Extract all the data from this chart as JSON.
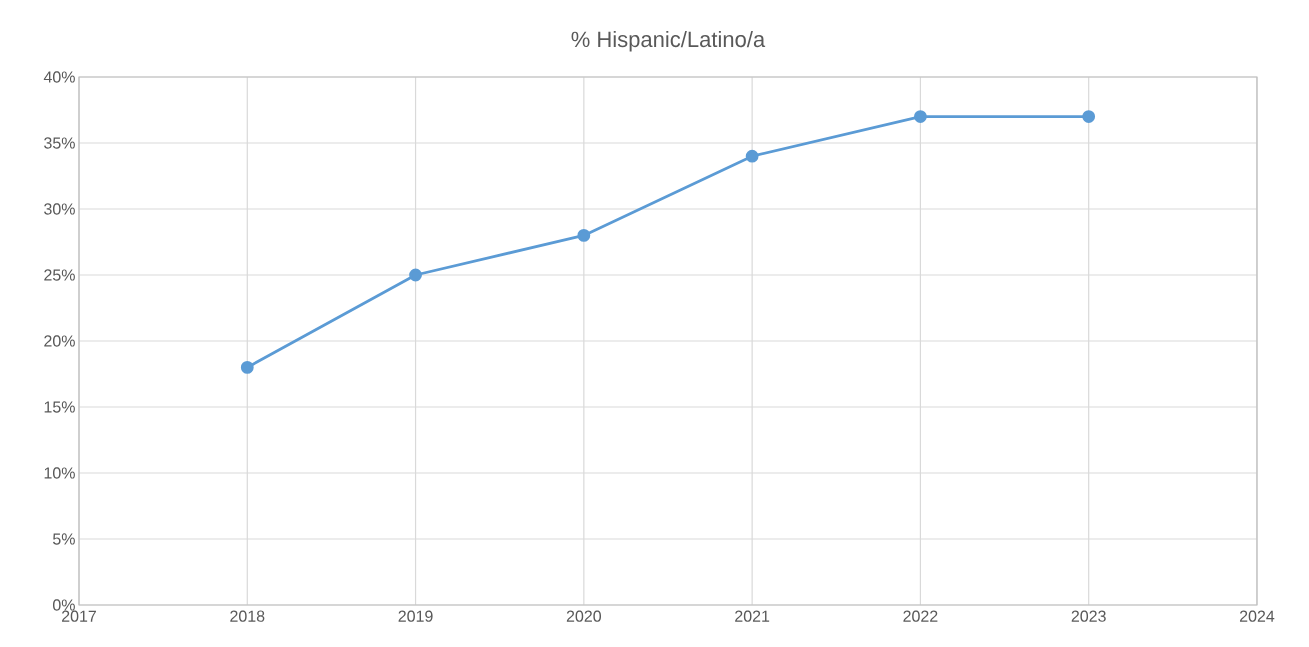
{
  "chart_data": {
    "type": "line",
    "title": "% Hispanic/Latino/a",
    "x": [
      2018,
      2019,
      2020,
      2021,
      2022,
      2023
    ],
    "series": [
      {
        "color": "#5b9bd5",
        "values": [
          18,
          25,
          28,
          34,
          37,
          37
        ]
      }
    ],
    "xlim": [
      2017,
      2024
    ],
    "xticks": [
      2017,
      2018,
      2019,
      2020,
      2021,
      2022,
      2023,
      2024
    ],
    "ylim": [
      0,
      40
    ],
    "yticks": [
      {
        "value": 0,
        "label": "0%"
      },
      {
        "value": 5,
        "label": "5%"
      },
      {
        "value": 10,
        "label": "10%"
      },
      {
        "value": 15,
        "label": "15%"
      },
      {
        "value": 20,
        "label": "20%"
      },
      {
        "value": 25,
        "label": "25%"
      },
      {
        "value": 30,
        "label": "30%"
      },
      {
        "value": 35,
        "label": "35%"
      },
      {
        "value": 40,
        "label": "40%"
      }
    ],
    "grid": true,
    "marker": "circle",
    "line_style": "solid"
  }
}
